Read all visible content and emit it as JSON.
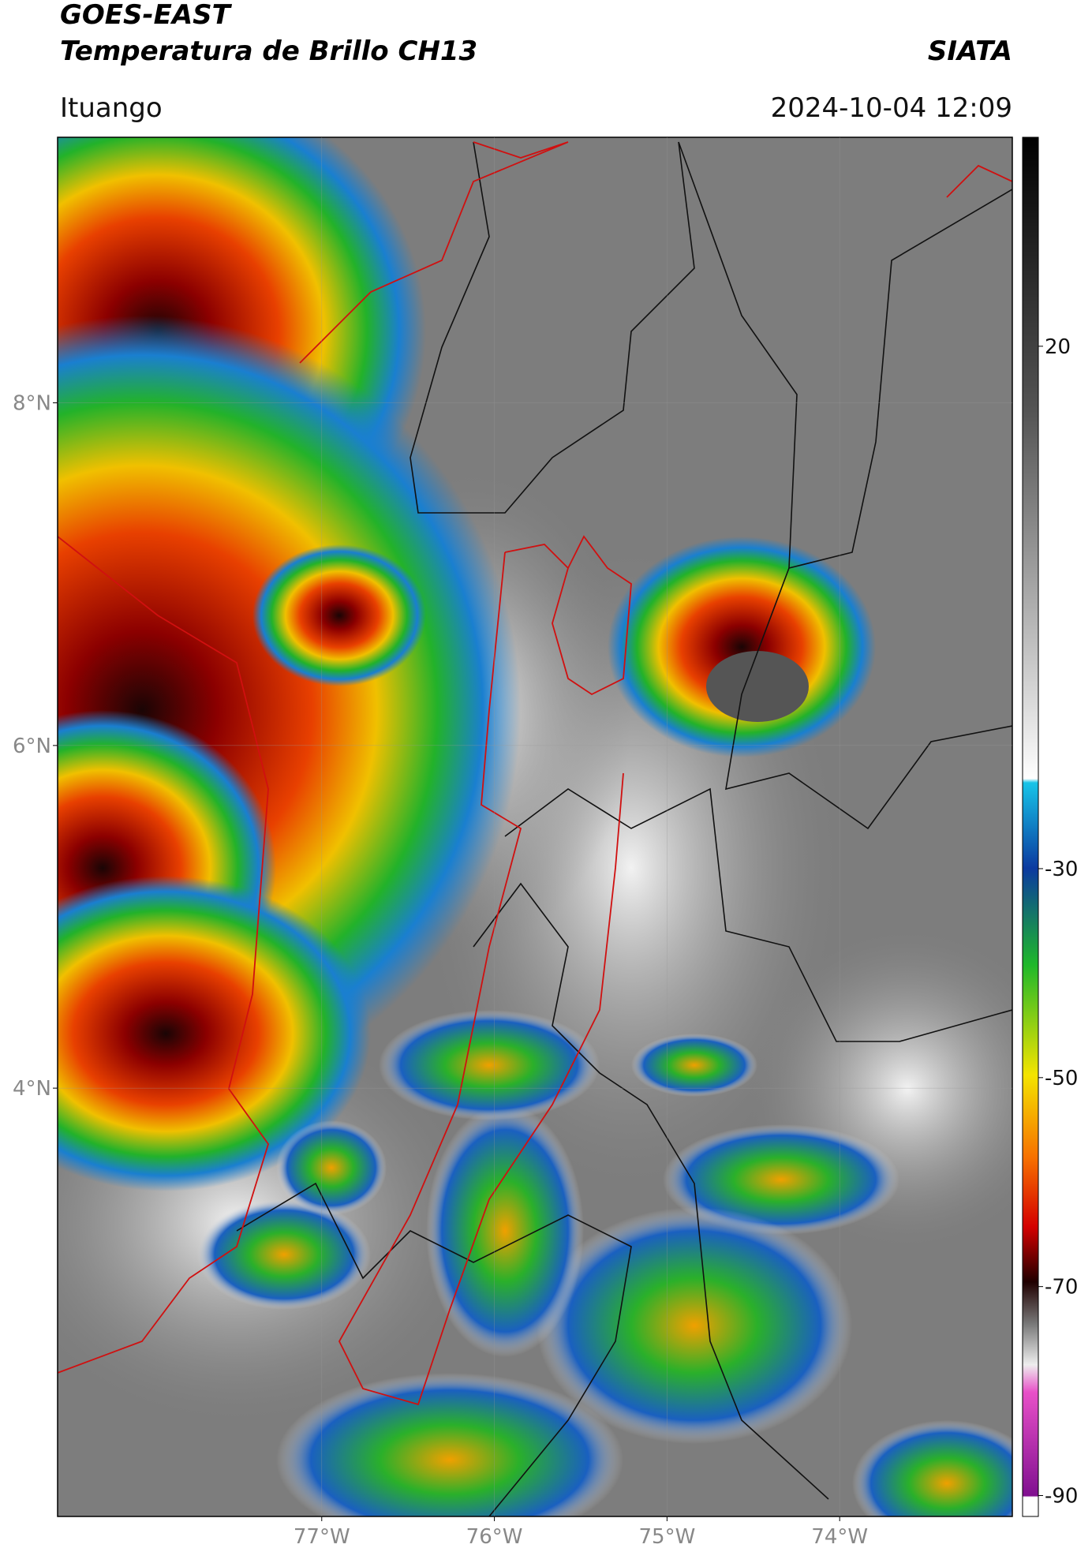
{
  "header": {
    "title": "GOES-EAST",
    "subtitle": "Temperatura de Brillo CH13",
    "organization": "SIATA",
    "location": "Ituango",
    "datetime": "2024-10-04 12:09"
  },
  "map": {
    "lat_range": [
      1.5,
      9.55
    ],
    "lon_range": [
      -78.53,
      -73.0
    ],
    "lat_ticks": [
      {
        "value": 8,
        "label": "8°N"
      },
      {
        "value": 6,
        "label": "6°N"
      },
      {
        "value": 4,
        "label": "4°N"
      }
    ],
    "lon_ticks": [
      {
        "value": -77,
        "label": "77°W"
      },
      {
        "value": -76,
        "label": "76°W"
      },
      {
        "value": -75,
        "label": "75°W"
      },
      {
        "value": -74,
        "label": "74°W"
      }
    ]
  },
  "colorbar": {
    "range": [
      -92,
      40
    ],
    "ticks": [
      20,
      -30,
      -50,
      -70,
      -90
    ]
  }
}
